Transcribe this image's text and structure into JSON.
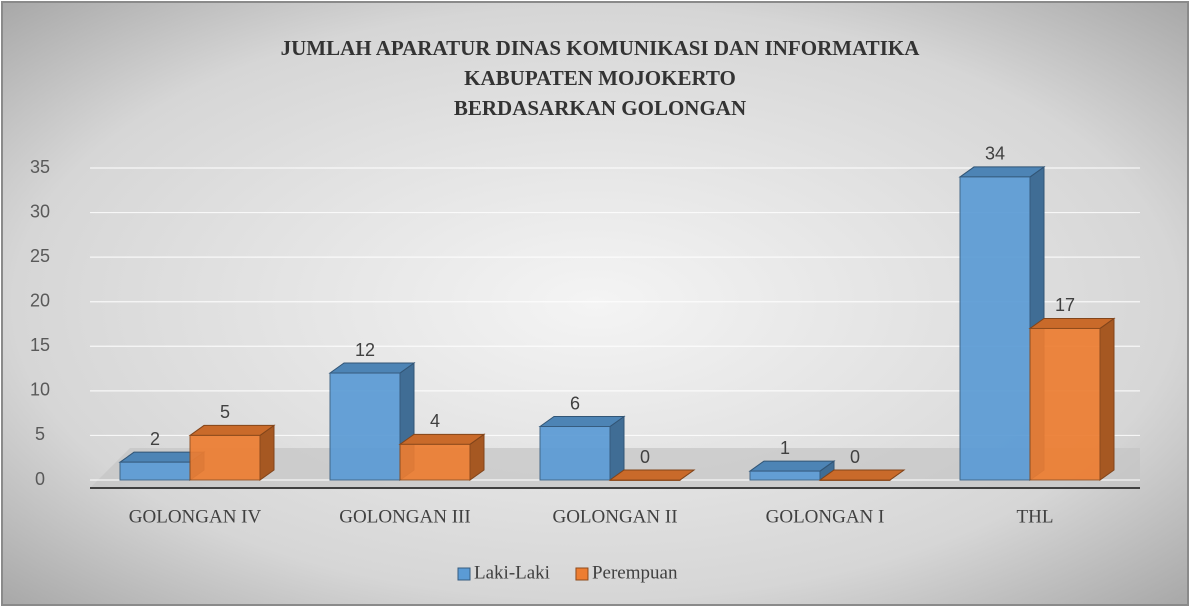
{
  "chart_data": {
    "type": "bar3d",
    "title": [
      "JUMLAH APARATUR DINAS KOMUNIKASI DAN INFORMATIKA",
      "KABUPATEN MOJOKERTO",
      "BERDASARKAN GOLONGAN"
    ],
    "categories": [
      "GOLONGAN IV",
      "GOLONGAN III",
      "GOLONGAN II",
      "GOLONGAN I",
      "THL"
    ],
    "series": [
      {
        "name": "Laki-Laki",
        "color": "#5b9bd5",
        "values": [
          2,
          12,
          6,
          1,
          34
        ]
      },
      {
        "name": "Perempuan",
        "color": "#ed7d31",
        "values": [
          5,
          4,
          0,
          0,
          17
        ]
      }
    ],
    "ylim": [
      0,
      35
    ],
    "yticks": [
      0,
      5,
      10,
      15,
      20,
      25,
      30,
      35
    ],
    "grid": true,
    "legend": "bottom"
  }
}
